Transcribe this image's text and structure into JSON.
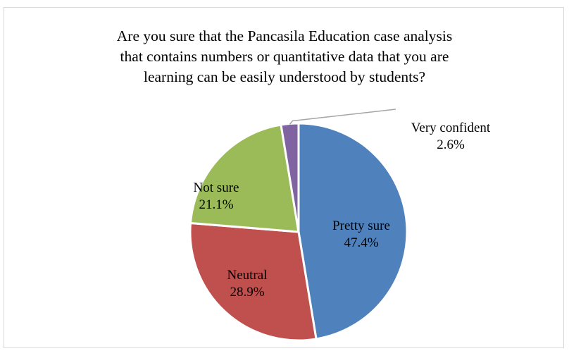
{
  "chart_data": {
    "type": "pie",
    "title_lines": [
      "Are you sure that the Pancasila Education case analysis",
      "that contains numbers or quantitative data that you are",
      "learning can be easily understood by students?"
    ],
    "slices": [
      {
        "label": "Pretty sure",
        "value_label": "47.4%",
        "value": 47.4,
        "color": "#4f81bd"
      },
      {
        "label": "Neutral",
        "value_label": "28.9%",
        "value": 28.9,
        "color": "#c0504d"
      },
      {
        "label": "Not sure",
        "value_label": "21.1%",
        "value": 21.1,
        "color": "#9bbb59"
      },
      {
        "label": "Very confident",
        "value_label": "2.6%",
        "value": 2.6,
        "color": "#8064a2"
      }
    ],
    "legend": "none",
    "leader_line_color": "#a6a6a6"
  }
}
